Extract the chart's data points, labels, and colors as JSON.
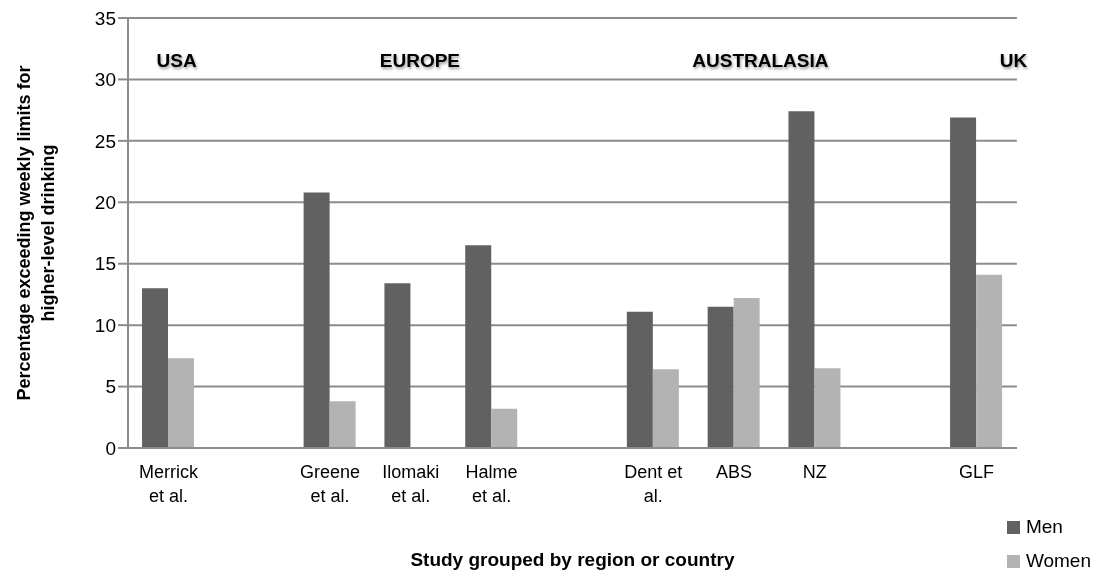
{
  "chart_data": {
    "type": "bar",
    "xlabel": "Study grouped by region or country",
    "ylabel": "Percentage exceeding weekly limits for higher-level drinking",
    "categories": [
      "Merrick et al.",
      null,
      "Greene et al.",
      "Ilomaki et al.",
      "Halme et al.",
      null,
      "Dent et al.",
      "ABS",
      "NZ",
      null,
      "GLF"
    ],
    "series": [
      {
        "name": "Men",
        "color": "#616161",
        "values": [
          13.0,
          null,
          20.8,
          13.4,
          16.5,
          null,
          11.1,
          11.5,
          27.4,
          null,
          26.9
        ]
      },
      {
        "name": "Women",
        "color": "#b3b3b3",
        "values": [
          7.3,
          null,
          3.8,
          null,
          3.2,
          null,
          6.4,
          12.2,
          6.5,
          null,
          14.1
        ]
      }
    ],
    "ylim": [
      0,
      35
    ],
    "yticks": [
      0,
      5,
      10,
      15,
      20,
      25,
      30,
      35
    ],
    "grid": "y",
    "legend": "bottom right",
    "annotations": [
      "USA",
      "EUROPE",
      "AUSTRALASIA",
      "UK"
    ]
  }
}
